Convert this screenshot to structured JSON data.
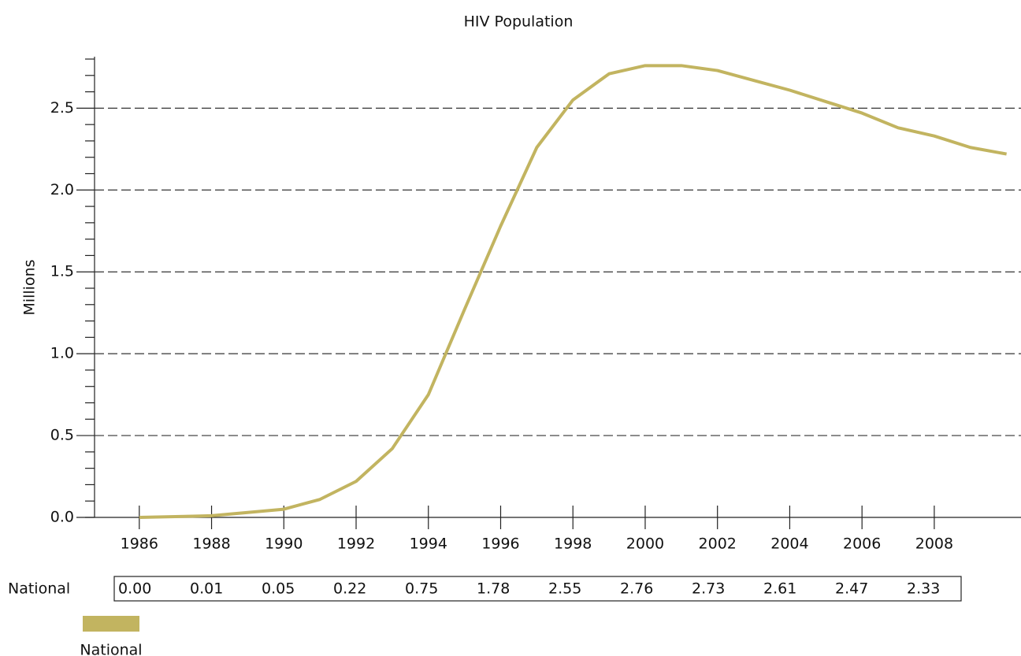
{
  "chart_data": {
    "type": "line",
    "title": "HIV Population",
    "y_label": "Millions",
    "x": [
      1986,
      1987,
      1988,
      1989,
      1990,
      1991,
      1992,
      1993,
      1994,
      1995,
      1996,
      1997,
      1998,
      1999,
      2000,
      2001,
      2002,
      2003,
      2004,
      2005,
      2006,
      2007,
      2008,
      2009,
      2010
    ],
    "series": [
      {
        "name": "National",
        "color": "#c2b460",
        "values": [
          0.0,
          0.005,
          0.01,
          0.03,
          0.05,
          0.11,
          0.22,
          0.42,
          0.75,
          1.27,
          1.78,
          2.26,
          2.55,
          2.71,
          2.76,
          2.76,
          2.73,
          2.67,
          2.61,
          2.54,
          2.47,
          2.38,
          2.33,
          2.26,
          2.22
        ]
      }
    ],
    "xlim": [
      1984.5,
      2010.4
    ],
    "xticks": [
      1986,
      1988,
      1990,
      1992,
      1994,
      1996,
      1998,
      2000,
      2002,
      2004,
      2006,
      2008
    ],
    "ylim": [
      0,
      2.8
    ],
    "yticks": [
      {
        "value": 0,
        "label": "0.0"
      },
      {
        "value": 0.5,
        "label": "0.5"
      },
      {
        "value": 1,
        "label": "1.0"
      },
      {
        "value": 1.5,
        "label": "1.5"
      },
      {
        "value": 2,
        "label": "2.0"
      },
      {
        "value": 2.5,
        "label": "2.5"
      }
    ],
    "minor_yticks": [
      0.1,
      0.2,
      0.3,
      0.4,
      0.6,
      0.7,
      0.8,
      0.9,
      1.1,
      1.2,
      1.3,
      1.4,
      1.6,
      1.7,
      1.8,
      1.9,
      2.1,
      2.2,
      2.3,
      2.4,
      2.6,
      2.7,
      2.8
    ],
    "grid": true,
    "legend": "bottom-left"
  },
  "table": {
    "row_label": "National",
    "cells": [
      "0.00",
      "0.01",
      "0.05",
      "0.22",
      "0.75",
      "1.78",
      "2.55",
      "2.76",
      "2.73",
      "2.61",
      "2.47",
      "2.33"
    ]
  }
}
